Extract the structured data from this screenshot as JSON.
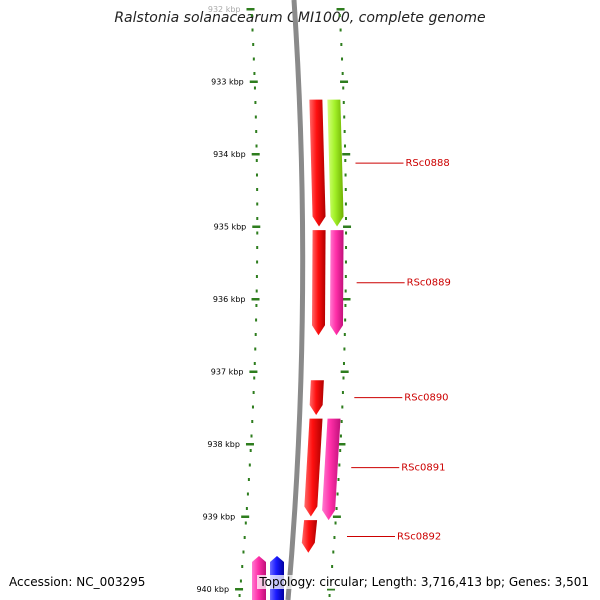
{
  "title": "Ralstonia solanacearum GMI1000, complete genome",
  "accession_text": "Accession: NC_003295",
  "summary_text": "Topology: circular; Length: 3,716,413 bp; Genes: 3,501",
  "colors": {
    "tick": "#2e7d1e",
    "backbone": "#8a8a8a",
    "gene_red": "#ff1010",
    "gene_pink": "#ff2fa8",
    "gene_green": "#a4f22a",
    "gene_blue": "#1a1aff",
    "label": "#cc0000"
  },
  "axis": {
    "start_kbp": 932,
    "end_kbp": 940,
    "ticks": [
      {
        "label": "932 kbp",
        "kbp": 932
      },
      {
        "label": "933 kbp",
        "kbp": 933
      },
      {
        "label": "934 kbp",
        "kbp": 934
      },
      {
        "label": "935 kbp",
        "kbp": 935
      },
      {
        "label": "936 kbp",
        "kbp": 936
      },
      {
        "label": "937 kbp",
        "kbp": 937
      },
      {
        "label": "938 kbp",
        "kbp": 938
      },
      {
        "label": "939 kbp",
        "kbp": 939
      },
      {
        "label": "940 kbp",
        "kbp": 940
      }
    ]
  },
  "genes": [
    {
      "label": "RSc0888",
      "start_kbp": 933.25,
      "end_kbp": 935.0,
      "color": "gene_red",
      "lane": "outer",
      "strand": "+"
    },
    {
      "label": "",
      "start_kbp": 933.25,
      "end_kbp": 935.0,
      "color": "gene_green",
      "lane": "inner",
      "strand": "+"
    },
    {
      "label": "RSc0889",
      "start_kbp": 935.05,
      "end_kbp": 936.5,
      "color": "gene_red",
      "lane": "outer",
      "strand": "+"
    },
    {
      "label": "",
      "start_kbp": 935.05,
      "end_kbp": 936.5,
      "color": "gene_pink",
      "lane": "inner",
      "strand": "+"
    },
    {
      "label": "RSc0890",
      "start_kbp": 937.12,
      "end_kbp": 937.6,
      "color": "gene_red",
      "lane": "outer",
      "strand": "+"
    },
    {
      "label": "RSc0891",
      "start_kbp": 937.65,
      "end_kbp": 939.0,
      "color": "gene_red",
      "lane": "outer",
      "strand": "+"
    },
    {
      "label": "",
      "start_kbp": 937.65,
      "end_kbp": 939.05,
      "color": "gene_pink",
      "lane": "inner",
      "strand": "+"
    },
    {
      "label": "RSc0892",
      "start_kbp": 939.05,
      "end_kbp": 939.5,
      "color": "gene_red",
      "lane": "outer",
      "strand": "+"
    }
  ],
  "bottom_genes": [
    {
      "color": "gene_pink"
    },
    {
      "color": "gene_blue"
    }
  ]
}
